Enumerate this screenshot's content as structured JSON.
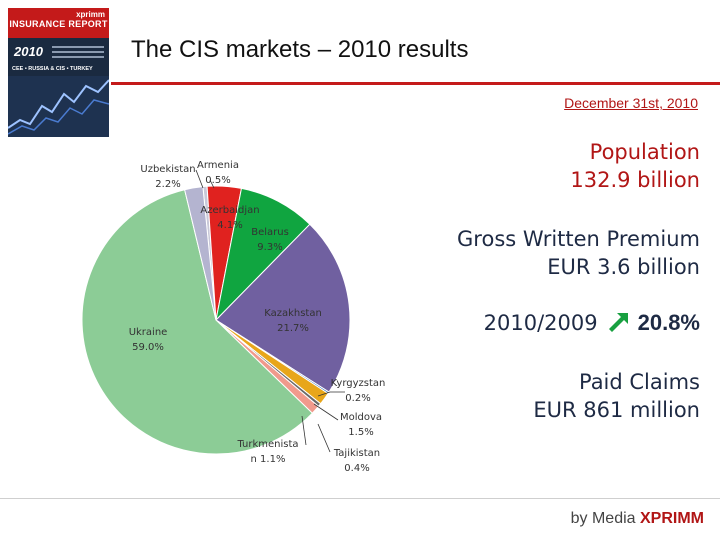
{
  "cover": {
    "brand": "xprimm",
    "report": "INSURANCE REPORT",
    "year": "2010",
    "regions": "CEE • RUSSIA & CIS • TURKEY"
  },
  "header": {
    "title": "The CIS markets – 2010 results",
    "date": "December 31st, 2010"
  },
  "stats": {
    "population_label": "Population",
    "population_value": "132.9 billion",
    "gwp_label": "Gross Written Premium",
    "gwp_value": "EUR 3.6 billion",
    "growth_label": "2010/2009",
    "growth_value": "20.8%",
    "claims_label": "Paid Claims",
    "claims_value": "EUR 861 million"
  },
  "footer": {
    "by": "by Media",
    "brand": "XPRIMM"
  },
  "chart_data": {
    "type": "pie",
    "slices": [
      {
        "country": "Armenia",
        "value": 0.5,
        "label": "Armenia\n0.5%",
        "color": "#c8c8d8"
      },
      {
        "country": "Azerbaidjan",
        "value": 4.1,
        "label": "Azerbaidjan\n4.1%",
        "color": "#e0221f"
      },
      {
        "country": "Belarus",
        "value": 9.3,
        "label": "Belarus\n9.3%",
        "color": "#10a540"
      },
      {
        "country": "Kazakhstan",
        "value": 21.7,
        "label": "Kazakhstan\n21.7%",
        "color": "#7060a0"
      },
      {
        "country": "Kyrgyzstan",
        "value": 0.2,
        "label": "Kyrgyzstan\n0.2%",
        "color": "#2e6fbf"
      },
      {
        "country": "Moldova",
        "value": 1.5,
        "label": "Moldova\n1.5%",
        "color": "#e8a61a"
      },
      {
        "country": "Tajikistan",
        "value": 0.4,
        "label": "Tajikistan\n0.4%",
        "color": "#6a6a6a"
      },
      {
        "country": "Turkmenistan",
        "value": 1.1,
        "label": "Turkmenista\nn 1.1%",
        "color": "#f09a8c"
      },
      {
        "country": "Ukraine",
        "value": 59.0,
        "label": "Ukraine\n59.0%",
        "color": "#8ccc96"
      },
      {
        "country": "Uzbekistan",
        "value": 2.2,
        "label": "Uzbekistan\n2.2%",
        "color": "#b4b4d0"
      }
    ]
  }
}
